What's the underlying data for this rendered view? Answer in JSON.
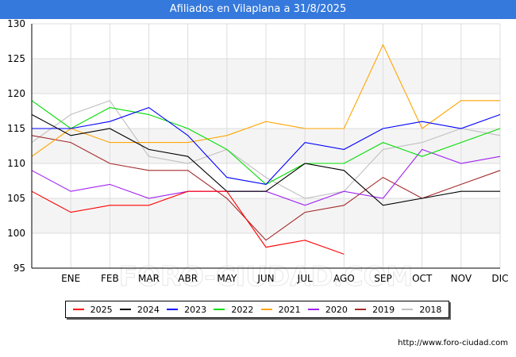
{
  "title": "Afiliados en Vilaplana a 31/8/2025",
  "watermark": "FORO-CIUDAD.COM",
  "footer_url": "http://www.foro-ciudad.com",
  "chart_data": {
    "type": "line",
    "title": "Afiliados en Vilaplana a 31/8/2025",
    "xlabel": "",
    "ylabel": "",
    "ylim": [
      95,
      130
    ],
    "yticks": [
      95,
      100,
      105,
      110,
      115,
      120,
      125,
      130
    ],
    "x": [
      "",
      "ENE",
      "FEB",
      "MAR",
      "ABR",
      "MAY",
      "JUN",
      "JUL",
      "AGO",
      "SEP",
      "OCT",
      "NOV",
      "DIC"
    ],
    "grid": true,
    "legend_position": "bottom",
    "series": [
      {
        "name": "2025",
        "color": "#ff0000",
        "values": [
          106,
          103,
          104,
          104,
          106,
          106,
          98,
          99,
          97,
          null,
          null,
          null,
          null
        ]
      },
      {
        "name": "2024",
        "color": "#000000",
        "values": [
          117,
          114,
          115,
          112,
          111,
          106,
          106,
          110,
          109,
          104,
          105,
          106,
          106
        ]
      },
      {
        "name": "2023",
        "color": "#0000ff",
        "values": [
          115,
          115,
          116,
          118,
          114,
          108,
          107,
          113,
          112,
          115,
          116,
          115,
          117
        ]
      },
      {
        "name": "2022",
        "color": "#00dd00",
        "values": [
          119,
          115,
          118,
          117,
          115,
          112,
          107,
          110,
          110,
          113,
          111,
          113,
          115
        ]
      },
      {
        "name": "2021",
        "color": "#ffa500",
        "values": [
          111,
          115,
          113,
          113,
          113,
          114,
          116,
          115,
          115,
          127,
          115,
          119,
          119
        ]
      },
      {
        "name": "2020",
        "color": "#a020f0",
        "values": [
          109,
          106,
          107,
          105,
          106,
          106,
          106,
          104,
          106,
          105,
          112,
          110,
          111
        ]
      },
      {
        "name": "2019",
        "color": "#a52a2a",
        "values": [
          114,
          113,
          110,
          109,
          109,
          105,
          99,
          103,
          104,
          108,
          105,
          107,
          109
        ]
      },
      {
        "name": "2018",
        "color": "#c0c0c0",
        "values": [
          113,
          117,
          119,
          111,
          110,
          112,
          108,
          105,
          106,
          112,
          113,
          115,
          114
        ]
      }
    ]
  }
}
